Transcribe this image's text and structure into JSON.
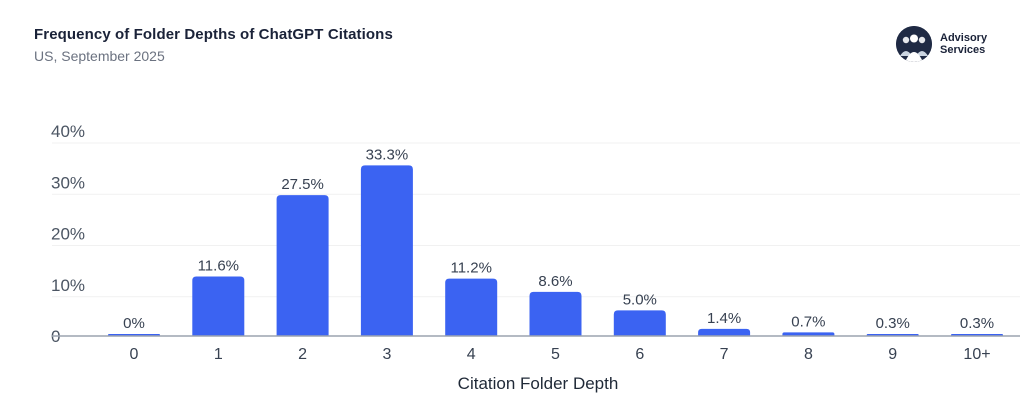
{
  "header": {
    "title": "Frequency of Folder Depths of ChatGPT Citations",
    "subtitle": "US, September 2025"
  },
  "brand": {
    "line1": "Advisory",
    "line2": "Services",
    "icon": "people-group-icon"
  },
  "colors": {
    "bar": "#3b63f2",
    "grid": "#f1f1f1",
    "axis": "#9ca3af"
  },
  "chart_data": {
    "type": "bar",
    "title": "Frequency of Folder Depths of ChatGPT Citations",
    "subtitle": "US, September 2025",
    "xlabel": "Citation Folder Depth",
    "ylabel": "",
    "categories": [
      "0",
      "1",
      "2",
      "3",
      "4",
      "5",
      "6",
      "7",
      "8",
      "9",
      "10+"
    ],
    "values": [
      0,
      11.6,
      27.5,
      33.3,
      11.2,
      8.6,
      5.0,
      1.4,
      0.7,
      0.3,
      0.3
    ],
    "data_labels": [
      "0%",
      "11.6%",
      "27.5%",
      "33.3%",
      "11.2%",
      "8.6%",
      "5.0%",
      "1.4%",
      "0.7%",
      "0.3%",
      "0.3%"
    ],
    "y_ticks": [
      0,
      10,
      20,
      30,
      40
    ],
    "y_tick_labels": [
      "0",
      "10%",
      "20%",
      "30%",
      "40%"
    ],
    "ylim": [
      0,
      40
    ],
    "grid": true,
    "legend": "none"
  }
}
